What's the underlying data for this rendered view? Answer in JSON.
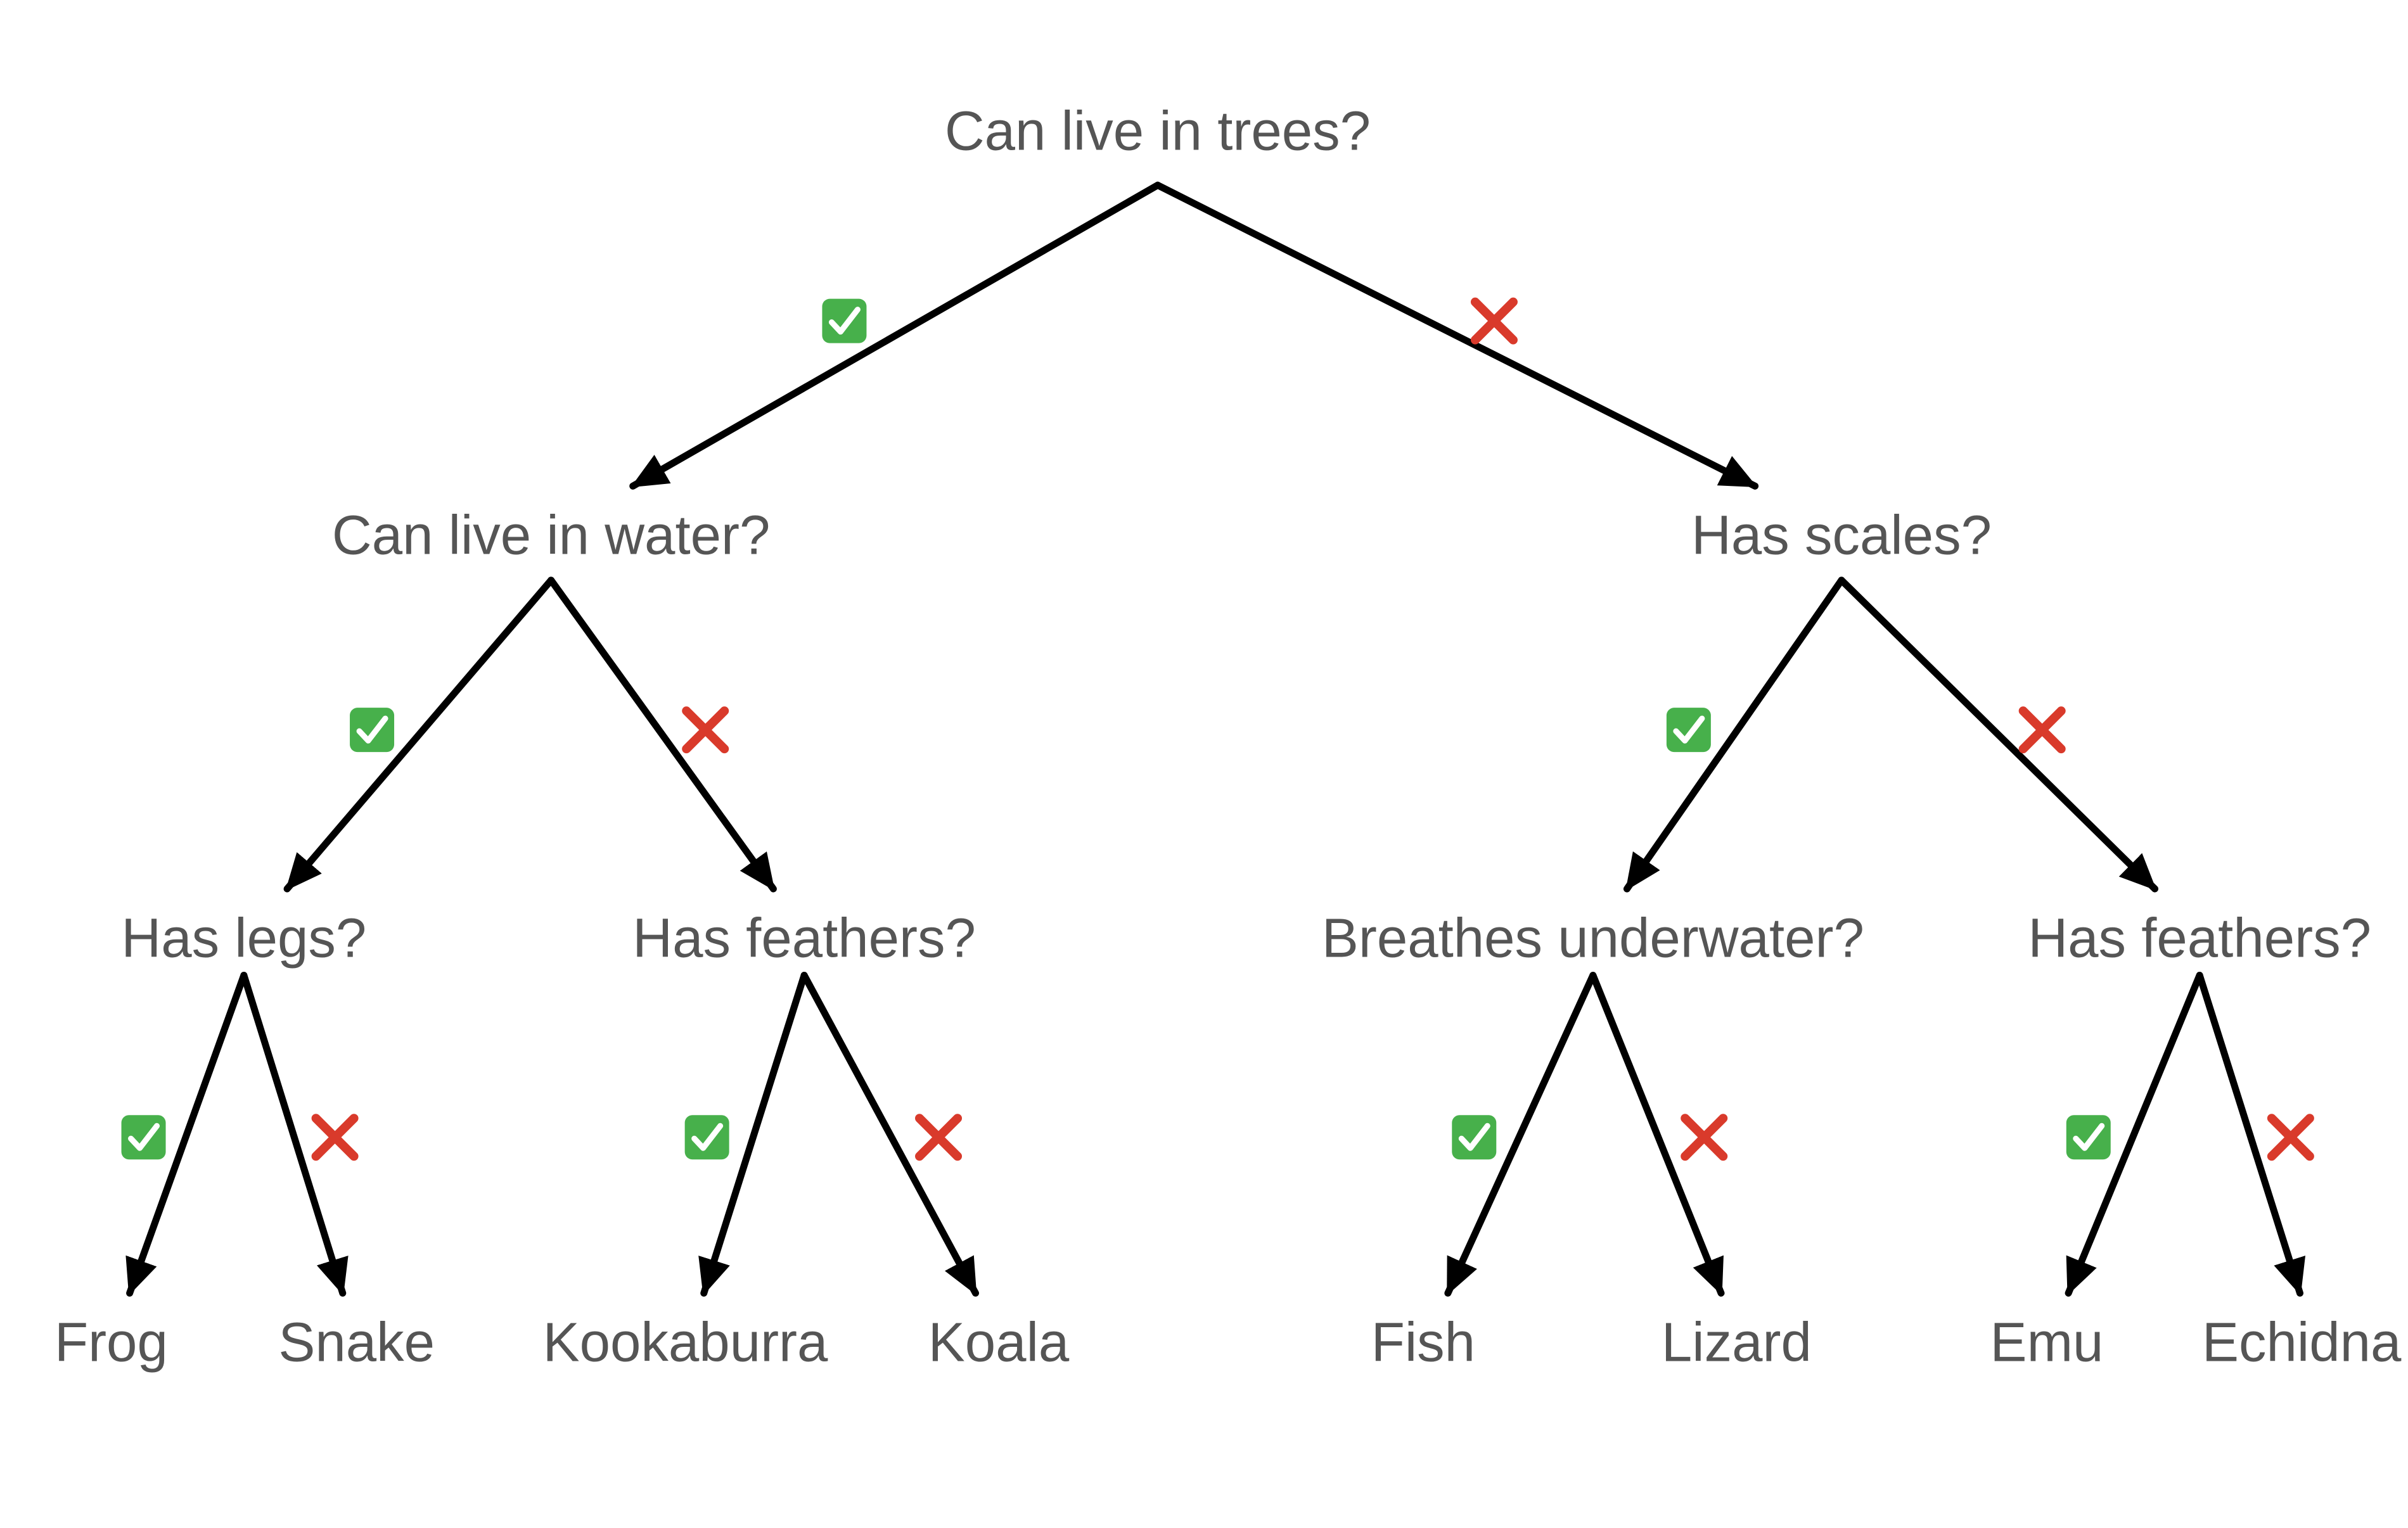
{
  "colors": {
    "text": "#555555",
    "edge": "#000000",
    "yes_icon_bg": "#47b04b",
    "no_icon": "#d93a2b"
  },
  "edge_icons": {
    "yes": "check-mark-button-icon",
    "no": "cross-mark-icon"
  },
  "nodes": [
    {
      "id": "root",
      "label": "Can live in trees?"
    },
    {
      "id": "water",
      "label": "Can live in water?"
    },
    {
      "id": "scales",
      "label": "Has scales?"
    },
    {
      "id": "legs",
      "label": "Has legs?"
    },
    {
      "id": "feathers_a",
      "label": "Has feathers?"
    },
    {
      "id": "breathes",
      "label": "Breathes underwater?"
    },
    {
      "id": "feathers_b",
      "label": "Has feathers?"
    },
    {
      "id": "frog",
      "label": "Frog"
    },
    {
      "id": "snake",
      "label": "Snake"
    },
    {
      "id": "kookaburra",
      "label": "Kookaburra"
    },
    {
      "id": "koala",
      "label": "Koala"
    },
    {
      "id": "fish",
      "label": "Fish"
    },
    {
      "id": "lizard",
      "label": "Lizard"
    },
    {
      "id": "emu",
      "label": "Emu"
    },
    {
      "id": "echidna",
      "label": "Echidna"
    }
  ],
  "edges": [
    {
      "from": "root",
      "to": "water",
      "answer": "yes"
    },
    {
      "from": "root",
      "to": "scales",
      "answer": "no"
    },
    {
      "from": "water",
      "to": "legs",
      "answer": "yes"
    },
    {
      "from": "water",
      "to": "feathers_a",
      "answer": "no"
    },
    {
      "from": "scales",
      "to": "breathes",
      "answer": "yes"
    },
    {
      "from": "scales",
      "to": "feathers_b",
      "answer": "no"
    },
    {
      "from": "legs",
      "to": "frog",
      "answer": "yes"
    },
    {
      "from": "legs",
      "to": "snake",
      "answer": "no"
    },
    {
      "from": "feathers_a",
      "to": "kookaburra",
      "answer": "yes"
    },
    {
      "from": "feathers_a",
      "to": "koala",
      "answer": "no"
    },
    {
      "from": "breathes",
      "to": "fish",
      "answer": "yes"
    },
    {
      "from": "breathes",
      "to": "lizard",
      "answer": "no"
    },
    {
      "from": "feathers_b",
      "to": "emu",
      "answer": "yes"
    },
    {
      "from": "feathers_b",
      "to": "echidna",
      "answer": "no"
    }
  ]
}
